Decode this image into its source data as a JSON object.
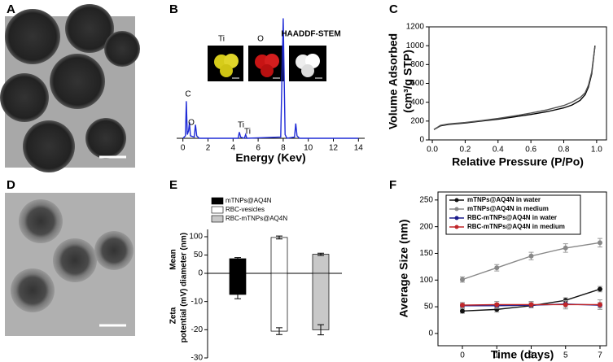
{
  "images": [
    {
      "panel": "A"
    },
    {
      "panel": "D"
    }
  ],
  "chart_data": [
    {
      "panel": "B",
      "type": "line",
      "xlabel": "Energy (Kev)",
      "x": [
        0,
        0.2,
        0.27,
        0.35,
        0.45,
        0.52,
        0.6,
        0.9,
        1.0,
        1.1,
        1.3,
        4.4,
        4.5,
        4.6,
        4.9,
        5.0,
        5.1,
        7.8,
        8.0,
        8.15,
        8.3,
        8.9,
        9.0,
        9.1,
        9.3,
        14
      ],
      "series": [
        {
          "color": "#1f2bd6",
          "values": [
            0,
            2,
            30,
            3,
            6,
            13,
            2,
            1,
            11,
            2,
            0,
            0,
            5,
            1,
            0,
            3,
            0,
            1,
            97,
            3,
            0,
            1,
            12,
            2,
            0,
            0
          ]
        }
      ],
      "xlim": [
        -0.5,
        14.5
      ],
      "ylim": [
        0,
        100
      ],
      "xticks": [
        0,
        2,
        4,
        6,
        8,
        10,
        12,
        14
      ],
      "annotations": [
        "C",
        "O",
        "Ti",
        "Ti",
        "HAADDF-STEM",
        "Ti",
        "O"
      ]
    },
    {
      "panel": "C",
      "type": "line",
      "xlabel": "Relative Pressure (P/Po)",
      "ylabel": [
        "Volume Adsorbed",
        "(cm³/g STP)"
      ],
      "x": [
        0.01,
        0.05,
        0.1,
        0.2,
        0.3,
        0.4,
        0.5,
        0.6,
        0.7,
        0.8,
        0.85,
        0.9,
        0.93,
        0.95,
        0.97,
        0.98,
        0.99
      ],
      "series": [
        {
          "color": "#000000",
          "values": [
            110,
            150,
            165,
            180,
            200,
            220,
            245,
            270,
            300,
            340,
            370,
            420,
            480,
            560,
            700,
            850,
            1000
          ]
        },
        {
          "color": "#555555",
          "values": [
            110,
            155,
            170,
            185,
            205,
            228,
            255,
            285,
            320,
            365,
            400,
            450,
            500,
            580,
            720,
            860,
            990
          ]
        }
      ],
      "xlim": [
        -0.02,
        1.06
      ],
      "ylim": [
        0,
        1200
      ],
      "xticks": [
        {
          "value": 0,
          "label": "0.0"
        },
        0.2,
        0.4,
        0.6,
        0.8,
        {
          "value": 1,
          "label": "1.0"
        }
      ],
      "yticks": [
        0,
        200,
        400,
        600,
        800,
        1000,
        1200
      ]
    },
    {
      "panel": "E",
      "type": "bar",
      "categories": [
        "mTNPs@AQ4N",
        "RBC-vesicles",
        "RBC-mTNPs@AQ4N"
      ],
      "colors": [
        "#000000",
        "#ffffff",
        "#c8c8c8"
      ],
      "diameter": {
        "label": [
          "Mean",
          "diameter (nm)"
        ],
        "values": [
          40,
          98,
          52
        ],
        "errors": [
          3,
          4,
          3
        ],
        "ylim": [
          0,
          120
        ],
        "yticks": [
          0,
          50,
          100
        ]
      },
      "zeta": {
        "label": [
          "Zeta",
          "potential (mV)"
        ],
        "values": [
          -7.5,
          -20.5,
          -20
        ],
        "errors": [
          1.5,
          1.2,
          1.8
        ],
        "ylim": [
          -30,
          0
        ],
        "yticks": [
          -10,
          -20,
          -30
        ]
      }
    },
    {
      "panel": "F",
      "type": "line",
      "xlabel": "Time (days)",
      "ylabel": [
        "Average Size (nm)"
      ],
      "categories": [
        "0",
        "1",
        "3",
        "5",
        "7"
      ],
      "ylim": [
        -23,
        265
      ],
      "yticks": [
        0,
        50,
        100,
        150,
        200,
        250
      ],
      "legend": "upper left",
      "series": [
        {
          "name": "mTNPs@AQ4N in water",
          "color": "#111111",
          "values": [
            42,
            45,
            52,
            62,
            83
          ],
          "errors": [
            4,
            5,
            4,
            5,
            5
          ]
        },
        {
          "name": "mTNPs@AQ4N in medium",
          "color": "#888888",
          "values": [
            101,
            123,
            145,
            160,
            170
          ],
          "errors": [
            5,
            6,
            7,
            8,
            8
          ]
        },
        {
          "name": "RBC-mTNPs@AQ4N in water",
          "color": "#1a1a8c",
          "values": [
            52,
            52,
            53,
            55,
            53
          ],
          "errors": [
            4,
            5,
            5,
            6,
            5
          ]
        },
        {
          "name": "RBC-mTNPs@AQ4N in medium",
          "color": "#c0262a",
          "values": [
            53,
            54,
            54,
            54,
            54
          ],
          "errors": [
            5,
            6,
            6,
            8,
            9
          ]
        }
      ]
    }
  ]
}
